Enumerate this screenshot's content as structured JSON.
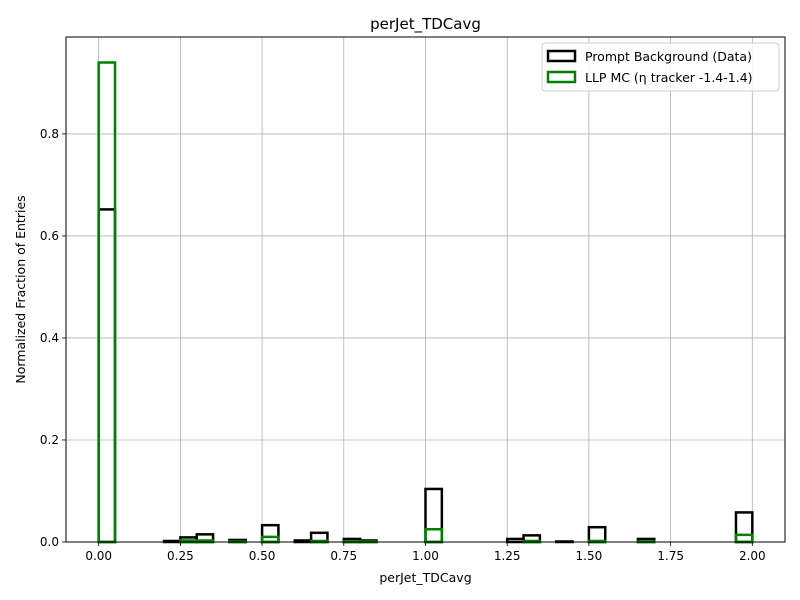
{
  "chart_data": {
    "type": "histogram-step",
    "title": "perJet_TDCavg",
    "xlabel": "perJet_TDCavg",
    "ylabel": "Normalized Fraction of Entries",
    "xlim": [
      -0.1,
      2.1
    ],
    "ylim": [
      0,
      0.99
    ],
    "xticks": [
      0.0,
      0.25,
      0.5,
      0.75,
      1.0,
      1.25,
      1.5,
      1.75,
      2.0
    ],
    "xtick_labels": [
      "0.00",
      "0.25",
      "0.50",
      "0.75",
      "1.00",
      "1.25",
      "1.50",
      "1.75",
      "2.00"
    ],
    "yticks": [
      0.0,
      0.2,
      0.4,
      0.6,
      0.8
    ],
    "ytick_labels": [
      "0.0",
      "0.2",
      "0.4",
      "0.6",
      "0.8"
    ],
    "grid": true,
    "legend_position": "upper right",
    "bin_edges": [
      0.0,
      0.05,
      0.1,
      0.15,
      0.2,
      0.25,
      0.3,
      0.35,
      0.4,
      0.45,
      0.5,
      0.55,
      0.6,
      0.65,
      0.7,
      0.75,
      0.8,
      0.85,
      0.9,
      0.95,
      1.0,
      1.05,
      1.1,
      1.15,
      1.2,
      1.25,
      1.3,
      1.35,
      1.4,
      1.45,
      1.5,
      1.55,
      1.6,
      1.65,
      1.7,
      1.75,
      1.8,
      1.85,
      1.9,
      1.95,
      2.0
    ],
    "series": [
      {
        "name": "Prompt Background (Data)",
        "color": "#000000",
        "values": [
          0.652,
          0.0,
          0.0,
          0.0,
          0.002,
          0.009,
          0.015,
          0.0,
          0.004,
          0.0,
          0.033,
          0.0,
          0.003,
          0.018,
          0.0,
          0.006,
          0.003,
          0.0,
          0.0,
          0.0,
          0.104,
          0.0,
          0.0,
          0.0,
          0.0,
          0.006,
          0.013,
          0.0,
          0.001,
          0.0,
          0.029,
          0.0,
          0.0,
          0.006,
          0.0,
          0.0,
          0.0,
          0.0,
          0.0,
          0.058
        ]
      },
      {
        "name": "LLP MC (η tracker -1.4-1.4)",
        "color": "#008000",
        "values": [
          0.94,
          0.0,
          0.0,
          0.0,
          0.0,
          0.003,
          0.003,
          0.0,
          0.001,
          0.0,
          0.01,
          0.0,
          0.0,
          0.002,
          0.0,
          0.001,
          0.001,
          0.0,
          0.0,
          0.0,
          0.025,
          0.0,
          0.0,
          0.0,
          0.0,
          0.0,
          0.002,
          0.0,
          0.0,
          0.0,
          0.002,
          0.0,
          0.0,
          0.001,
          0.0,
          0.0,
          0.0,
          0.0,
          0.0,
          0.014
        ]
      }
    ]
  }
}
